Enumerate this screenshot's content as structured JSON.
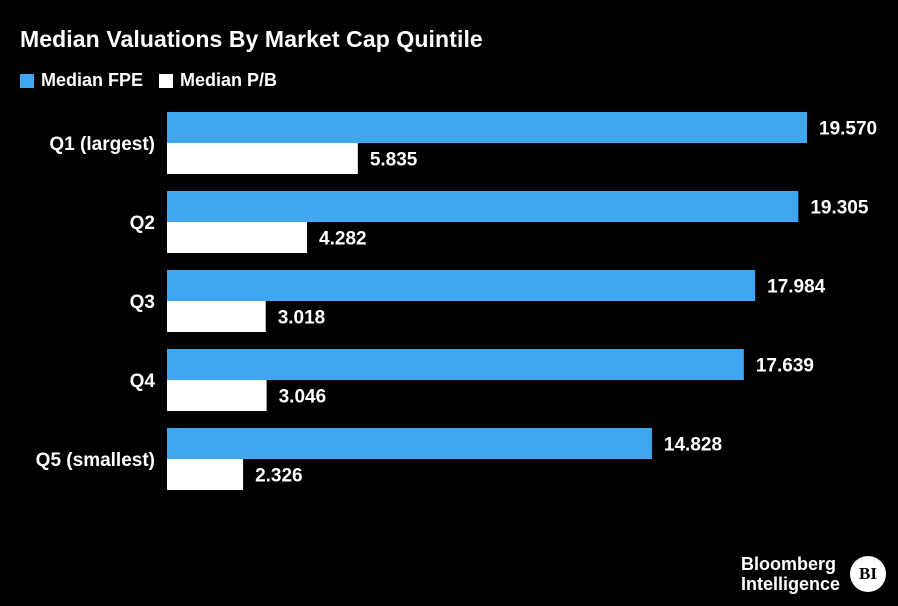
{
  "colors": {
    "background": "#000000",
    "series1": "#3fa6f2",
    "series2": "#ffffff",
    "text": "#ffffff"
  },
  "chart_data": {
    "type": "bar",
    "orientation": "horizontal",
    "title": "Median Valuations By Market Cap Quintile",
    "categories": [
      "Q1 (largest)",
      "Q2",
      "Q3",
      "Q4",
      "Q5 (smallest)"
    ],
    "series": [
      {
        "name": "Median FPE",
        "values": [
          19.57,
          19.305,
          17.984,
          17.639,
          14.828
        ],
        "labels": [
          "19.570",
          "19.305",
          "17.984",
          "17.639",
          "14.828"
        ]
      },
      {
        "name": "Median P/B",
        "values": [
          5.835,
          4.282,
          3.018,
          3.046,
          2.326
        ],
        "labels": [
          "5.835",
          "4.282",
          "3.018",
          "3.046",
          "2.326"
        ]
      }
    ],
    "xlabel": "",
    "ylabel": "",
    "xlim": [
      0,
      19.57
    ],
    "grid": false,
    "legend_placement": "top-left"
  },
  "branding": {
    "line1": "Bloomberg",
    "line2": "Intelligence",
    "badge": "BI"
  }
}
